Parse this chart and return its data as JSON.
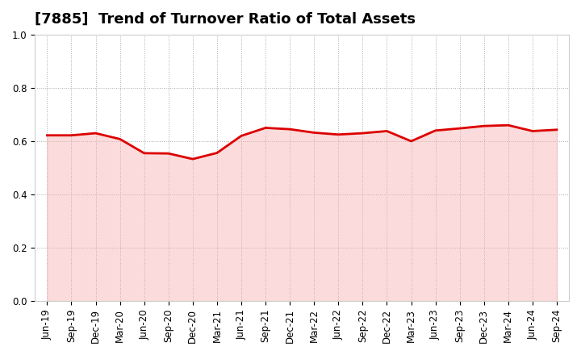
{
  "title": "[7885]  Trend of Turnover Ratio of Total Assets",
  "x_labels": [
    "Jun-19",
    "Sep-19",
    "Dec-19",
    "Mar-20",
    "Jun-20",
    "Sep-20",
    "Dec-20",
    "Mar-21",
    "Jun-21",
    "Sep-21",
    "Dec-21",
    "Mar-22",
    "Jun-22",
    "Sep-22",
    "Dec-22",
    "Mar-23",
    "Jun-23",
    "Sep-23",
    "Dec-23",
    "Mar-24",
    "Jun-24",
    "Sep-24"
  ],
  "y_values": [
    0.622,
    0.622,
    0.63,
    0.608,
    0.555,
    0.554,
    0.533,
    0.556,
    0.62,
    0.65,
    0.645,
    0.632,
    0.625,
    0.63,
    0.638,
    0.6,
    0.64,
    0.648,
    0.657,
    0.66,
    0.638,
    0.643
  ],
  "line_color": "#dd0000",
  "line_width": 2.0,
  "fill_color": "#f8b0b0",
  "fill_alpha": 0.45,
  "ylim": [
    0.0,
    1.0
  ],
  "yticks": [
    0.0,
    0.2,
    0.4,
    0.6,
    0.8,
    1.0
  ],
  "background_color": "#ffffff",
  "grid_color": "#aaaaaa",
  "title_fontsize": 13,
  "tick_fontsize": 8.5
}
